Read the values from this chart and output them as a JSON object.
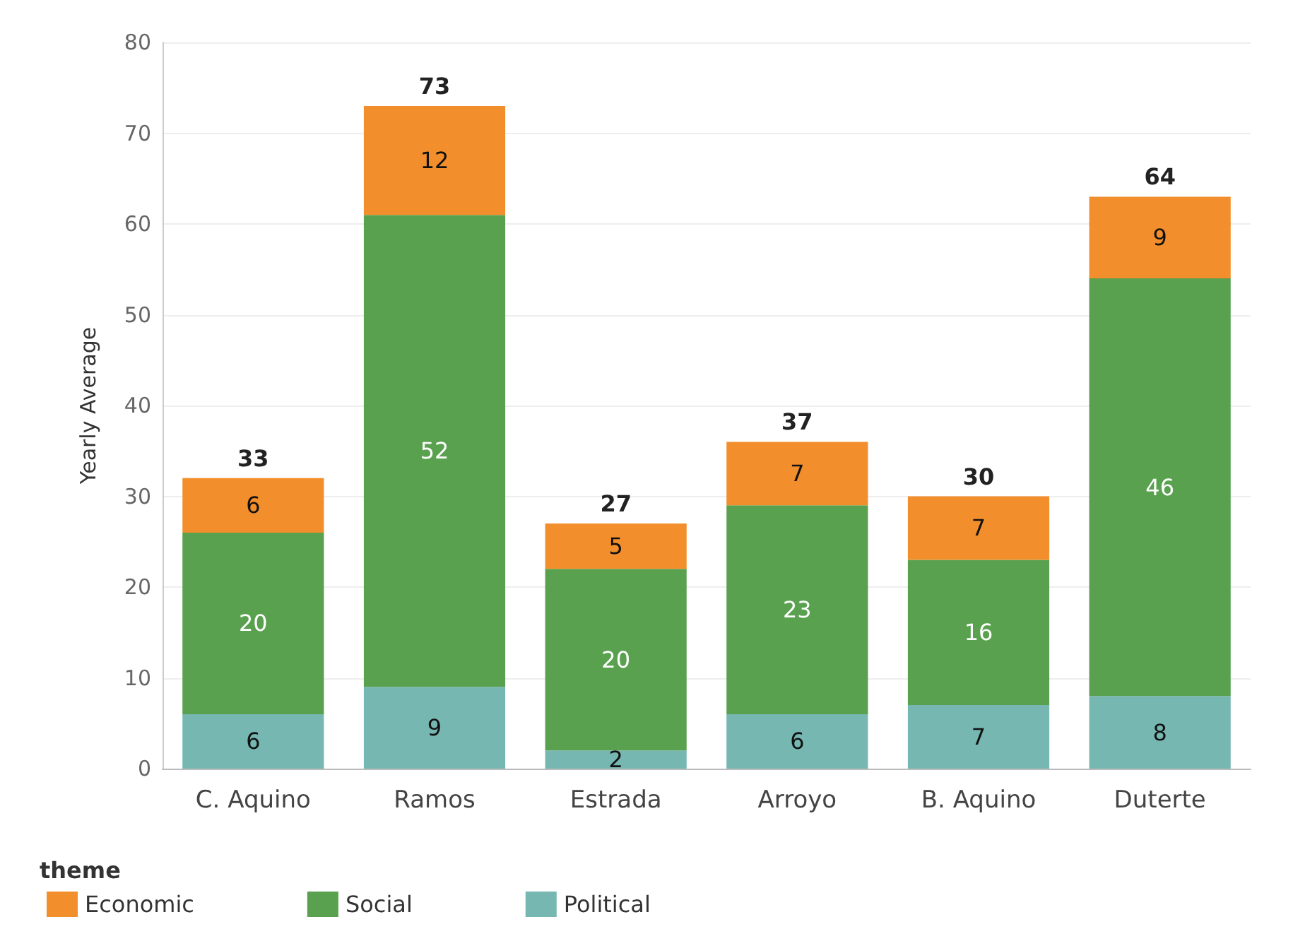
{
  "chart_data": {
    "type": "bar",
    "ylabel": "Yearly Average",
    "legend_title": "theme",
    "categories": [
      "C. Aquino",
      "Ramos",
      "Estrada",
      "Arroyo",
      "B. Aquino",
      "Duterte"
    ],
    "series": [
      {
        "name": "Political",
        "color": "#76b7b2",
        "values": [
          6,
          9,
          2,
          6,
          7,
          8
        ]
      },
      {
        "name": "Social",
        "color": "#59a14f",
        "values": [
          20,
          52,
          20,
          23,
          16,
          46
        ]
      },
      {
        "name": "Economic",
        "color": "#f28e2b",
        "values": [
          6,
          12,
          5,
          7,
          7,
          9
        ]
      }
    ],
    "stacked": true,
    "data_labels": true,
    "totals": [
      "33",
      "73",
      "27",
      "37",
      "30",
      "64"
    ],
    "ylim": [
      0,
      80
    ],
    "yticks": [
      0,
      10,
      20,
      30,
      40,
      50,
      60,
      70,
      80
    ],
    "grid": "y",
    "legend": "bottom left"
  }
}
